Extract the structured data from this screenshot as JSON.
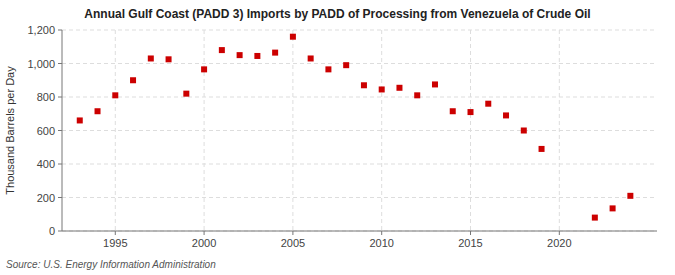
{
  "chart_data": {
    "type": "scatter",
    "title": "Annual Gulf Coast (PADD 3) Imports by PADD of Processing from Venezuela of Crude Oil",
    "ylabel": "Thousand Barrels per Day",
    "source": "Source: U.S. Energy Information Administration",
    "x": [
      1993,
      1994,
      1995,
      1996,
      1997,
      1998,
      1999,
      2000,
      2001,
      2002,
      2003,
      2004,
      2005,
      2006,
      2007,
      2008,
      2009,
      2010,
      2011,
      2012,
      2013,
      2014,
      2015,
      2016,
      2017,
      2018,
      2019,
      2022,
      2023,
      2024
    ],
    "values": [
      660,
      715,
      810,
      900,
      1030,
      1025,
      820,
      965,
      1080,
      1050,
      1045,
      1065,
      1160,
      1030,
      965,
      990,
      870,
      845,
      855,
      810,
      875,
      715,
      710,
      760,
      690,
      600,
      490,
      80,
      135,
      210
    ],
    "color": "#cc0000",
    "marker": "square",
    "xlim": [
      1992,
      2025.5
    ],
    "ylim": [
      0,
      1200
    ],
    "xticks": [
      1995,
      2000,
      2005,
      2010,
      2015,
      2020
    ],
    "yticks": [
      0,
      200,
      400,
      600,
      800,
      {
        "value": 1000,
        "label": "1,000"
      },
      {
        "value": 1200,
        "label": "1,200"
      }
    ],
    "grid": true
  }
}
